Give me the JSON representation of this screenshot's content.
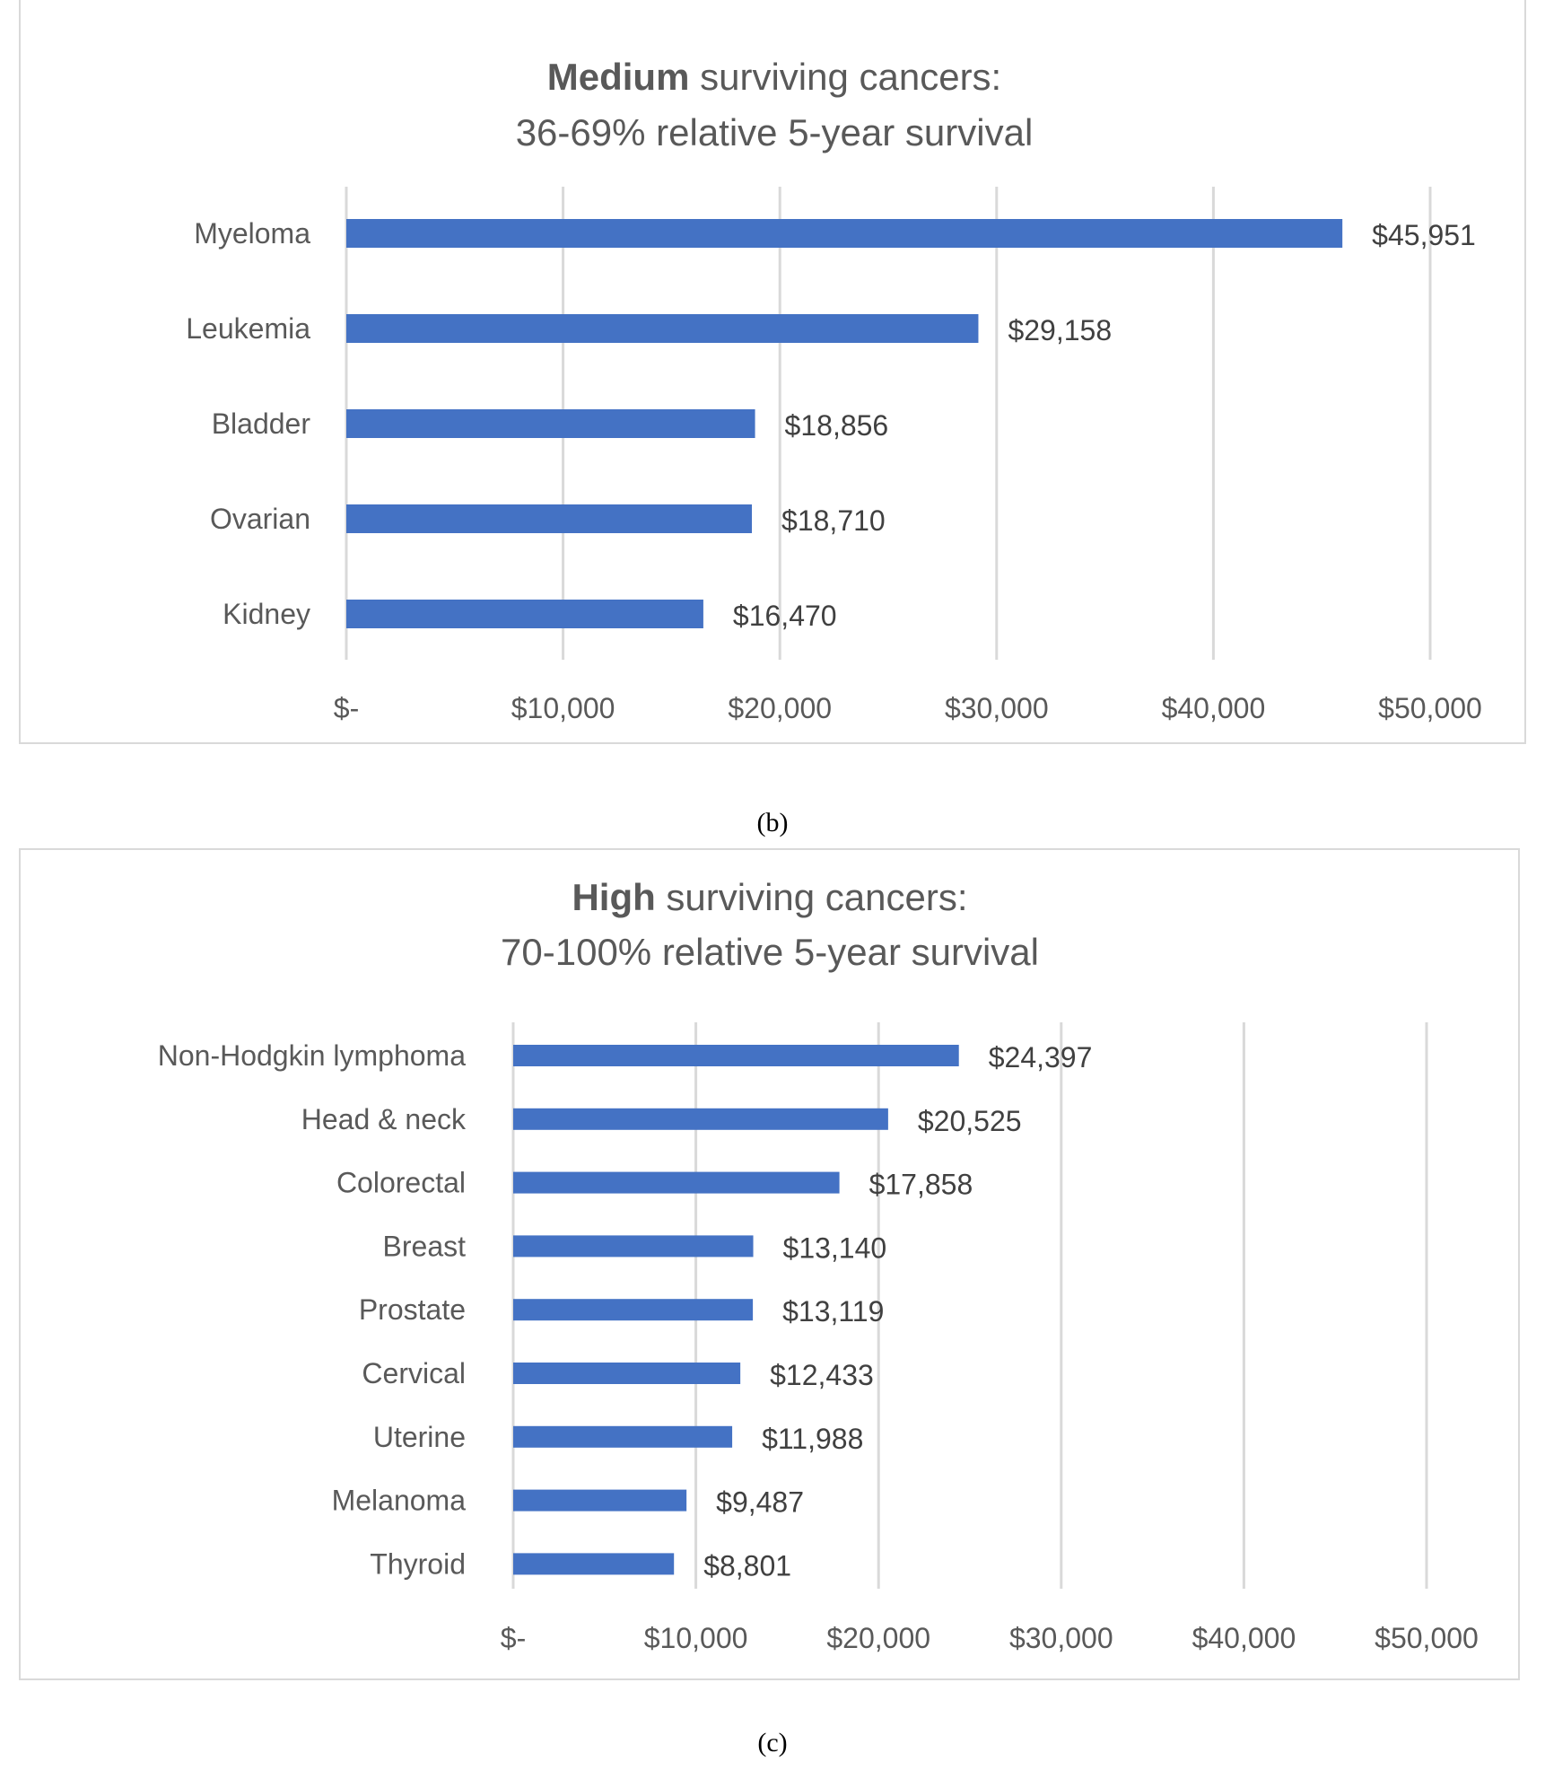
{
  "chart_data": [
    {
      "type": "bar",
      "orientation": "horizontal",
      "title_bold": "Medium",
      "title_rest": " surviving cancers:",
      "subtitle": "36-69% relative 5-year survival",
      "categories": [
        "Myeloma",
        "Leukemia",
        "Bladder",
        "Ovarian",
        "Kidney"
      ],
      "values": [
        45951,
        29158,
        18856,
        18710,
        16470
      ],
      "data_labels": [
        "$45,951",
        "$29,158",
        "$18,856",
        "$18,710",
        "$16,470"
      ],
      "xlim": [
        0,
        50000
      ],
      "ticks": [
        0,
        10000,
        20000,
        30000,
        40000,
        50000
      ],
      "tick_labels": [
        "$-",
        "$10,000",
        "$20,000",
        "$30,000",
        "$40,000",
        "$50,000"
      ],
      "grid": true,
      "bar_color": "#4472c4"
    },
    {
      "type": "bar",
      "orientation": "horizontal",
      "title_bold": "High",
      "title_rest": " surviving cancers:",
      "subtitle": "70-100% relative 5-year survival",
      "categories": [
        "Non-Hodgkin lymphoma",
        "Head & neck",
        "Colorectal",
        "Breast",
        "Prostate",
        "Cervical",
        "Uterine",
        "Melanoma",
        "Thyroid"
      ],
      "values": [
        24397,
        20525,
        17858,
        13140,
        13119,
        12433,
        11988,
        9487,
        8801
      ],
      "data_labels": [
        "$24,397",
        "$20,525",
        "$17,858",
        "$13,140",
        "$13,119",
        "$12,433",
        "$11,988",
        "$9,487",
        "$8,801"
      ],
      "xlim": [
        0,
        50000
      ],
      "ticks": [
        0,
        10000,
        20000,
        30000,
        40000,
        50000
      ],
      "tick_labels": [
        "$-",
        "$10,000",
        "$20,000",
        "$30,000",
        "$40,000",
        "$50,000"
      ],
      "grid": true,
      "bar_color": "#4472c4"
    }
  ],
  "panel_labels": [
    "(b)",
    "(c)"
  ]
}
